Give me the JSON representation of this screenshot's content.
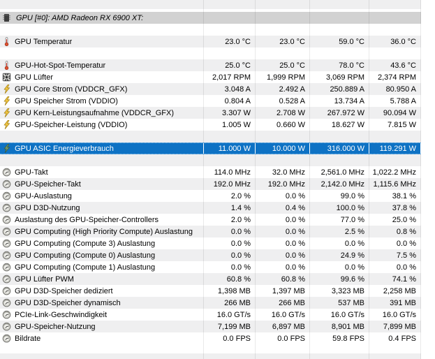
{
  "colors": {
    "selection_blue": "#0e72c4",
    "stripe_gray": "#efeff0",
    "header_gray": "#d2d2d2",
    "bolt_yellow": "#f5c842",
    "bolt_green": "#6f9a6f",
    "thermometer_red": "#e0512e"
  },
  "rows": [
    {
      "type": "blank",
      "shade": "stripe",
      "height": 13
    },
    {
      "type": "blank",
      "shade": "white",
      "height": 4
    },
    {
      "type": "header",
      "shade": "header",
      "icon": "chip-icon",
      "label": "GPU [#0]: AMD Radeon RX 6900 XT:"
    },
    {
      "type": "blank",
      "shade": "white"
    },
    {
      "type": "sensor",
      "shade": "stripe",
      "icon": "thermometer-icon",
      "label": "GPU Temperatur",
      "values": [
        "23.0 °C",
        "23.0 °C",
        "59.0 °C",
        "36.0 °C"
      ]
    },
    {
      "type": "blank",
      "shade": "white"
    },
    {
      "type": "sensor",
      "shade": "stripe",
      "icon": "thermometer-icon",
      "label": "GPU-Hot-Spot-Temperatur",
      "values": [
        "25.0 °C",
        "25.0 °C",
        "78.0 °C",
        "43.6 °C"
      ]
    },
    {
      "type": "sensor",
      "shade": "white",
      "icon": "fan-icon",
      "label": "GPU Lüfter",
      "values": [
        "2,017 RPM",
        "1,999 RPM",
        "3,069 RPM",
        "2,374 RPM"
      ]
    },
    {
      "type": "sensor",
      "shade": "stripe",
      "icon": "lightning-icon",
      "label": "GPU Core Strom (VDDCR_GFX)",
      "values": [
        "3.048 A",
        "2.492 A",
        "250.889 A",
        "80.950 A"
      ]
    },
    {
      "type": "sensor",
      "shade": "white",
      "icon": "lightning-icon",
      "label": "GPU Speicher Strom (VDDIO)",
      "values": [
        "0.804 A",
        "0.528 A",
        "13.734 A",
        "5.788 A"
      ]
    },
    {
      "type": "sensor",
      "shade": "stripe",
      "icon": "lightning-icon",
      "label": "GPU Kern-Leistungsaufnahme (VDDCR_GFX)",
      "values": [
        "3.307 W",
        "2.708 W",
        "267.972 W",
        "90.094 W"
      ]
    },
    {
      "type": "sensor",
      "shade": "white",
      "icon": "lightning-icon",
      "label": "GPU-Speicher-Leistung (VDDIO)",
      "values": [
        "1.005 W",
        "0.660 W",
        "18.627 W",
        "7.815 W"
      ]
    },
    {
      "type": "blank",
      "shade": "stripe"
    },
    {
      "type": "sensor",
      "shade": "white",
      "selected": true,
      "icon": "lightning-green-icon",
      "label": "GPU ASIC Energieverbrauch",
      "values": [
        "11.000 W",
        "10.000 W",
        "316.000 W",
        "119.291 W"
      ]
    },
    {
      "type": "blank",
      "shade": "stripe"
    },
    {
      "type": "sensor",
      "shade": "white",
      "icon": "clock-icon",
      "label": "GPU-Takt",
      "values": [
        "114.0 MHz",
        "32.0 MHz",
        "2,561.0 MHz",
        "1,022.2 MHz"
      ]
    },
    {
      "type": "sensor",
      "shade": "stripe",
      "icon": "clock-icon",
      "label": "GPU-Speicher-Takt",
      "values": [
        "192.0 MHz",
        "192.0 MHz",
        "2,142.0 MHz",
        "1,115.6 MHz"
      ]
    },
    {
      "type": "sensor",
      "shade": "white",
      "icon": "clock-icon",
      "label": "GPU-Auslastung",
      "values": [
        "2.0 %",
        "0.0 %",
        "99.0 %",
        "38.1 %"
      ]
    },
    {
      "type": "sensor",
      "shade": "stripe",
      "icon": "clock-icon",
      "label": "GPU D3D-Nutzung",
      "values": [
        "1.4 %",
        "0.4 %",
        "100.0 %",
        "37.8 %"
      ]
    },
    {
      "type": "sensor",
      "shade": "white",
      "icon": "clock-icon",
      "label": "Auslastung des GPU-Speicher-Controllers",
      "values": [
        "2.0 %",
        "0.0 %",
        "77.0 %",
        "25.0 %"
      ]
    },
    {
      "type": "sensor",
      "shade": "stripe",
      "icon": "clock-icon",
      "label": "GPU Computing (High Priority Compute) Auslastung",
      "values": [
        "0.0 %",
        "0.0 %",
        "2.5 %",
        "0.8 %"
      ]
    },
    {
      "type": "sensor",
      "shade": "white",
      "icon": "clock-icon",
      "label": "GPU Computing (Compute 3) Auslastung",
      "values": [
        "0.0 %",
        "0.0 %",
        "0.0 %",
        "0.0 %"
      ]
    },
    {
      "type": "sensor",
      "shade": "stripe",
      "icon": "clock-icon",
      "label": "GPU Computing (Compute 0) Auslastung",
      "values": [
        "0.0 %",
        "0.0 %",
        "24.9 %",
        "7.5 %"
      ]
    },
    {
      "type": "sensor",
      "shade": "white",
      "icon": "clock-icon",
      "label": "GPU Computing (Compute 1) Auslastung",
      "values": [
        "0.0 %",
        "0.0 %",
        "0.0 %",
        "0.0 %"
      ]
    },
    {
      "type": "sensor",
      "shade": "stripe",
      "icon": "clock-icon",
      "label": "GPU Lüfter PWM",
      "values": [
        "60.8 %",
        "60.8 %",
        "99.6 %",
        "74.1 %"
      ]
    },
    {
      "type": "sensor",
      "shade": "white",
      "icon": "clock-icon",
      "label": "GPU D3D-Speicher dediziert",
      "values": [
        "1,398 MB",
        "1,397 MB",
        "3,323 MB",
        "2,258 MB"
      ]
    },
    {
      "type": "sensor",
      "shade": "stripe",
      "icon": "clock-icon",
      "label": "GPU D3D-Speicher dynamisch",
      "values": [
        "266 MB",
        "266 MB",
        "537 MB",
        "391 MB"
      ]
    },
    {
      "type": "sensor",
      "shade": "white",
      "icon": "clock-icon",
      "label": "PCIe-Link-Geschwindigkeit",
      "values": [
        "16.0 GT/s",
        "16.0 GT/s",
        "16.0 GT/s",
        "16.0 GT/s"
      ]
    },
    {
      "type": "sensor",
      "shade": "stripe",
      "icon": "clock-icon",
      "label": "GPU-Speicher-Nutzung",
      "values": [
        "7,199 MB",
        "6,897 MB",
        "8,901 MB",
        "7,899 MB"
      ]
    },
    {
      "type": "sensor",
      "shade": "white",
      "icon": "clock-icon",
      "label": "Bildrate",
      "values": [
        "0.0 FPS",
        "0.0 FPS",
        "59.8 FPS",
        "0.4 FPS"
      ]
    },
    {
      "type": "blank",
      "shade": "white",
      "height": 13
    },
    {
      "type": "blank",
      "shade": "stripe",
      "height": 8
    }
  ]
}
